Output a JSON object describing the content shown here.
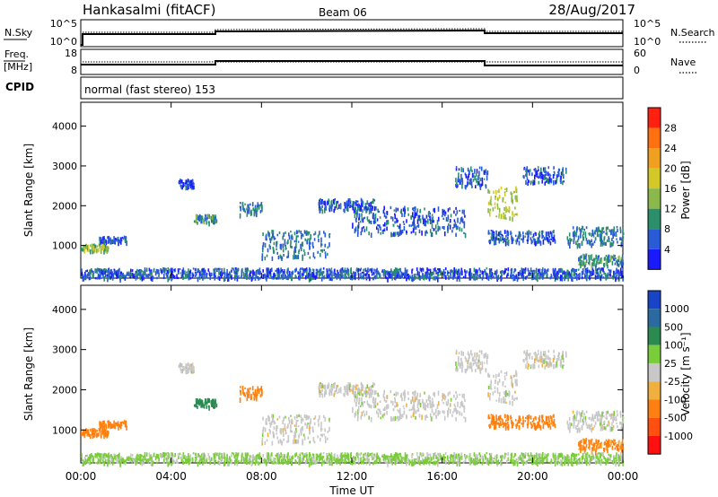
{
  "header": {
    "station": "Hankasalmi (fitACF)",
    "beam": "Beam 06",
    "date": "28/Aug/2017"
  },
  "status_panels": {
    "nsky_label": "N.Sky",
    "nsky_ticks": [
      "10^5",
      "10^0"
    ],
    "nsearch_label": "N.Search",
    "nsearch_ticks": [
      "10^5",
      "10^0"
    ],
    "freq_label": "Freq.",
    "freq_unit": "[MHz]",
    "freq_ticks": [
      "18",
      "8"
    ],
    "nave_label": "Nave",
    "nave_ticks": [
      "60",
      "0"
    ],
    "cpid_label": "CPID",
    "cpid_text": "normal (fast stereo) 153"
  },
  "xaxis": {
    "label": "Time UT",
    "ticks": [
      "00:00",
      "04:00",
      "08:00",
      "12:00",
      "16:00",
      "20:00",
      "00:00"
    ]
  },
  "chart_data": [
    {
      "type": "heatmap",
      "ylabel": "Slant Range [km]",
      "ylim": [
        180,
        4600
      ],
      "yticks": [
        1000,
        2000,
        3000,
        4000
      ],
      "xlim_hours": [
        0,
        24
      ],
      "colorbar_label": "Power [dB]",
      "colorbar_ticks": [
        4,
        8,
        12,
        16,
        20,
        24,
        28
      ],
      "colorbar_colors": [
        "#1a1aff",
        "#2a5bd6",
        "#2a8f6a",
        "#8ab84a",
        "#d4c828",
        "#f0a020",
        "#ff7010",
        "#ff2010"
      ],
      "regions": [
        {
          "t": [
            0.0,
            24.0
          ],
          "r": [
            200,
            450
          ],
          "v": 6
        },
        {
          "t": [
            0.0,
            1.2
          ],
          "r": [
            900,
            1050
          ],
          "v": 14
        },
        {
          "t": [
            0.8,
            2.0
          ],
          "r": [
            1100,
            1250
          ],
          "v": 6
        },
        {
          "t": [
            4.3,
            5.0
          ],
          "r": [
            2500,
            2700
          ],
          "v": 5
        },
        {
          "t": [
            5.0,
            6.0
          ],
          "r": [
            1600,
            1800
          ],
          "v": 10
        },
        {
          "t": [
            7.0,
            8.0
          ],
          "r": [
            1800,
            2100
          ],
          "v": 8
        },
        {
          "t": [
            8.0,
            11.0
          ],
          "r": [
            700,
            1400
          ],
          "v": 8
        },
        {
          "t": [
            10.5,
            13.0
          ],
          "r": [
            1900,
            2200
          ],
          "v": 6
        },
        {
          "t": [
            12.0,
            17.0
          ],
          "r": [
            1300,
            2000
          ],
          "v": 6
        },
        {
          "t": [
            16.5,
            18.0
          ],
          "r": [
            2500,
            3000
          ],
          "v": 6
        },
        {
          "t": [
            18.0,
            19.3
          ],
          "r": [
            1700,
            2500
          ],
          "v": 16
        },
        {
          "t": [
            18.0,
            21.0
          ],
          "r": [
            1100,
            1400
          ],
          "v": 6
        },
        {
          "t": [
            19.5,
            21.5
          ],
          "r": [
            2600,
            3000
          ],
          "v": 6
        },
        {
          "t": [
            21.5,
            24.0
          ],
          "r": [
            1050,
            1500
          ],
          "v": 8
        },
        {
          "t": [
            22.0,
            24.0
          ],
          "r": [
            500,
            800
          ],
          "v": 10
        }
      ]
    },
    {
      "type": "heatmap",
      "ylabel": "Slant Range [km]",
      "ylim": [
        180,
        4600
      ],
      "yticks": [
        1000,
        2000,
        3000,
        4000
      ],
      "xlim_hours": [
        0,
        24
      ],
      "colorbar_label": "Velocity [m s⁻¹]",
      "colorbar_ticks": [
        1000,
        500,
        100,
        25,
        -25,
        -100,
        -500,
        -1000
      ],
      "colorbar_colors": [
        "#1a44c8",
        "#2a6aa0",
        "#2a8a50",
        "#7acc3a",
        "#c8c8c8",
        "#f0b040",
        "#ff8010",
        "#ff5010",
        "#ff1010"
      ],
      "regions": [
        {
          "t": [
            0.0,
            24.0
          ],
          "r": [
            200,
            450
          ],
          "v": 40
        },
        {
          "t": [
            0.0,
            1.2
          ],
          "r": [
            900,
            1050
          ],
          "v": -150
        },
        {
          "t": [
            0.8,
            2.0
          ],
          "r": [
            1100,
            1250
          ],
          "v": -200
        },
        {
          "t": [
            4.3,
            5.0
          ],
          "r": [
            2500,
            2700
          ],
          "v": 0
        },
        {
          "t": [
            5.0,
            6.0
          ],
          "r": [
            1600,
            1800
          ],
          "v": 150
        },
        {
          "t": [
            7.0,
            8.0
          ],
          "r": [
            1800,
            2100
          ],
          "v": -300
        },
        {
          "t": [
            8.0,
            11.0
          ],
          "r": [
            700,
            1400
          ],
          "v": 0
        },
        {
          "t": [
            10.5,
            13.0
          ],
          "r": [
            1900,
            2200
          ],
          "v": 0
        },
        {
          "t": [
            12.0,
            17.0
          ],
          "r": [
            1300,
            2000
          ],
          "v": 0
        },
        {
          "t": [
            16.5,
            18.0
          ],
          "r": [
            2500,
            3000
          ],
          "v": 0
        },
        {
          "t": [
            18.0,
            19.3
          ],
          "r": [
            1700,
            2500
          ],
          "v": 0
        },
        {
          "t": [
            18.0,
            21.0
          ],
          "r": [
            1100,
            1400
          ],
          "v": -400
        },
        {
          "t": [
            19.5,
            21.5
          ],
          "r": [
            2600,
            3000
          ],
          "v": 0
        },
        {
          "t": [
            21.5,
            24.0
          ],
          "r": [
            1050,
            1500
          ],
          "v": 0
        },
        {
          "t": [
            22.0,
            24.0
          ],
          "r": [
            500,
            800
          ],
          "v": -120
        }
      ]
    }
  ]
}
